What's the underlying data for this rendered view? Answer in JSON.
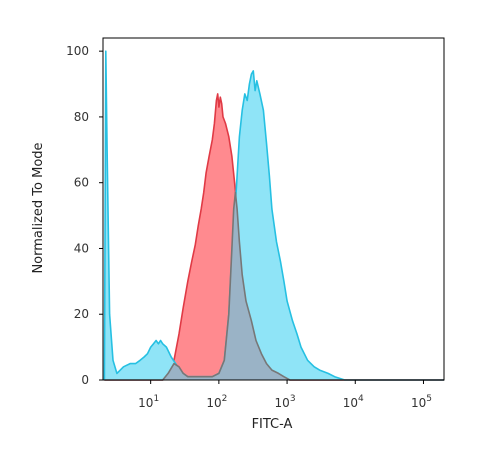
{
  "chart_data": {
    "type": "area",
    "xlabel": "FITC-A",
    "ylabel": "Normalized To Mode",
    "x_scale": "log",
    "xlim": [
      2,
      200000
    ],
    "ylim": [
      0,
      104
    ],
    "x_ticks": [
      {
        "value": 10,
        "base": "10",
        "exp": "1"
      },
      {
        "value": 100,
        "base": "10",
        "exp": "2"
      },
      {
        "value": 1000,
        "base": "10",
        "exp": "3"
      },
      {
        "value": 10000,
        "base": "10",
        "exp": "4"
      },
      {
        "value": 100000,
        "base": "10",
        "exp": "5"
      }
    ],
    "y_ticks": [
      "0",
      "20",
      "40",
      "60",
      "80",
      "100"
    ],
    "grid": false,
    "legend": "none",
    "series": [
      {
        "color": "#ff8a8f",
        "stroke": "#e03a45",
        "points": [
          [
            2.1,
            0
          ],
          [
            15,
            0
          ],
          [
            18,
            2
          ],
          [
            22,
            6
          ],
          [
            26,
            14
          ],
          [
            30,
            22
          ],
          [
            35,
            30
          ],
          [
            40,
            36
          ],
          [
            45,
            41
          ],
          [
            50,
            47
          ],
          [
            55,
            52
          ],
          [
            60,
            57
          ],
          [
            65,
            63
          ],
          [
            72,
            68
          ],
          [
            80,
            73
          ],
          [
            86,
            78
          ],
          [
            92,
            85
          ],
          [
            96,
            87
          ],
          [
            100,
            83
          ],
          [
            105,
            86
          ],
          [
            110,
            84
          ],
          [
            115,
            80
          ],
          [
            125,
            78
          ],
          [
            140,
            74
          ],
          [
            155,
            68
          ],
          [
            170,
            60
          ],
          [
            185,
            52
          ],
          [
            200,
            42
          ],
          [
            220,
            32
          ],
          [
            250,
            24
          ],
          [
            300,
            18
          ],
          [
            350,
            12
          ],
          [
            420,
            8
          ],
          [
            500,
            5
          ],
          [
            600,
            3
          ],
          [
            750,
            2
          ],
          [
            900,
            1
          ],
          [
            1100,
            0
          ],
          [
            200000,
            0
          ]
        ]
      },
      {
        "color": "#8fe4f7",
        "stroke": "#26c0e2",
        "points": [
          [
            2.1,
            0
          ],
          [
            2.2,
            100
          ],
          [
            2.3,
            70
          ],
          [
            2.5,
            20
          ],
          [
            2.8,
            6
          ],
          [
            3.2,
            2
          ],
          [
            4,
            4
          ],
          [
            5,
            5
          ],
          [
            6,
            5
          ],
          [
            7,
            6
          ],
          [
            8,
            7
          ],
          [
            9,
            8
          ],
          [
            10,
            10
          ],
          [
            11,
            11
          ],
          [
            12,
            12
          ],
          [
            13,
            11
          ],
          [
            14,
            12
          ],
          [
            15,
            11
          ],
          [
            17,
            10
          ],
          [
            20,
            7
          ],
          [
            25,
            4
          ],
          [
            30,
            2
          ],
          [
            35,
            1
          ],
          [
            40,
            1
          ],
          [
            50,
            1
          ],
          [
            60,
            1
          ],
          [
            80,
            1
          ],
          [
            100,
            2
          ],
          [
            120,
            6
          ],
          [
            140,
            20
          ],
          [
            160,
            44
          ],
          [
            180,
            58
          ],
          [
            200,
            74
          ],
          [
            220,
            82
          ],
          [
            240,
            87
          ],
          [
            260,
            85
          ],
          [
            280,
            90
          ],
          [
            300,
            93
          ],
          [
            320,
            94
          ],
          [
            340,
            88
          ],
          [
            360,
            91
          ],
          [
            400,
            87
          ],
          [
            450,
            82
          ],
          [
            500,
            72
          ],
          [
            550,
            62
          ],
          [
            600,
            52
          ],
          [
            700,
            42
          ],
          [
            800,
            36
          ],
          [
            900,
            30
          ],
          [
            1000,
            24
          ],
          [
            1200,
            18
          ],
          [
            1400,
            14
          ],
          [
            1600,
            10
          ],
          [
            2000,
            6
          ],
          [
            2500,
            4
          ],
          [
            3000,
            3
          ],
          [
            4000,
            2
          ],
          [
            5000,
            1
          ],
          [
            7000,
            0
          ],
          [
            200000,
            0
          ]
        ]
      },
      {
        "color": "#9ab3c6",
        "stroke": "#777777",
        "points": [
          [
            2.1,
            0
          ],
          [
            15,
            0
          ],
          [
            18,
            2
          ],
          [
            22,
            5
          ],
          [
            26,
            4
          ],
          [
            30,
            2
          ],
          [
            35,
            1
          ],
          [
            40,
            1
          ],
          [
            50,
            1
          ],
          [
            60,
            1
          ],
          [
            80,
            1
          ],
          [
            100,
            2
          ],
          [
            120,
            6
          ],
          [
            140,
            20
          ],
          [
            155,
            40
          ],
          [
            165,
            52
          ],
          [
            175,
            57
          ],
          [
            185,
            52
          ],
          [
            200,
            42
          ],
          [
            220,
            32
          ],
          [
            250,
            24
          ],
          [
            300,
            18
          ],
          [
            350,
            12
          ],
          [
            420,
            8
          ],
          [
            500,
            5
          ],
          [
            600,
            3
          ],
          [
            750,
            2
          ],
          [
            900,
            1
          ],
          [
            1100,
            0
          ],
          [
            200000,
            0
          ]
        ]
      }
    ]
  }
}
